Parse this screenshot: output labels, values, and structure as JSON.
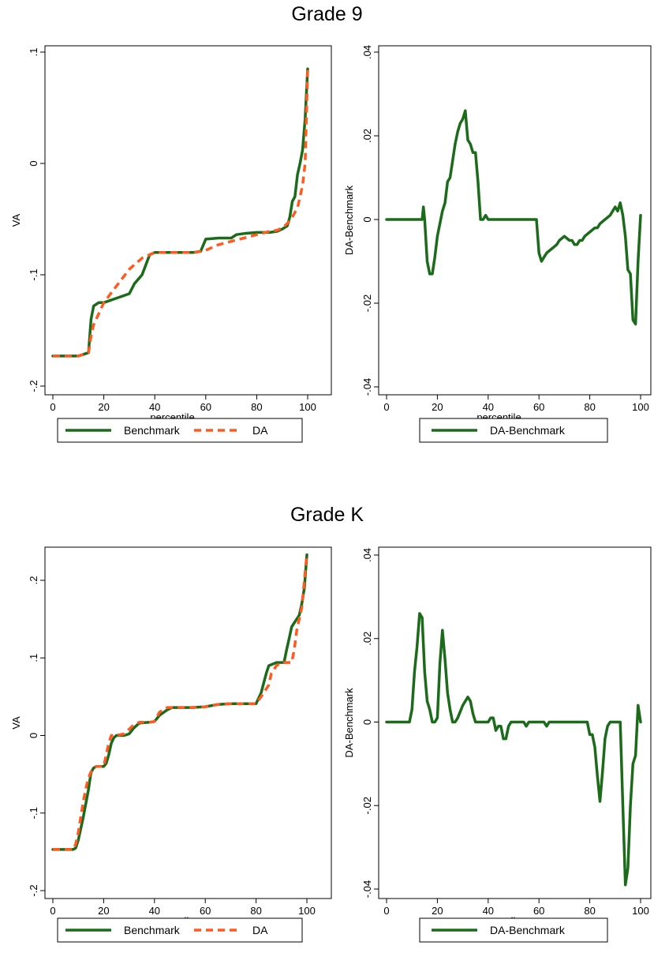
{
  "sections": [
    {
      "title": "Grade 9"
    },
    {
      "title": "Grade K"
    }
  ],
  "colors": {
    "benchmark": "#1b6b1b",
    "da": "#ff5a1f",
    "frame": "#000000"
  },
  "chart_data": [
    {
      "type": "line",
      "panel": "Grade 9 left",
      "xlabel": "percentile",
      "ylabel": "VA",
      "xlim": [
        0,
        100
      ],
      "ylim": [
        -0.2,
        0.1
      ],
      "xticks": [
        0,
        20,
        40,
        60,
        80,
        100
      ],
      "xtick_labels": [
        "0",
        "20",
        "40",
        "60",
        "80",
        "100"
      ],
      "yticks": [
        -0.2,
        -0.1,
        0,
        0.1
      ],
      "ytick_labels": [
        "-.2",
        "-.1",
        "0",
        ".1"
      ],
      "legend": [
        "Benchmark",
        "DA"
      ],
      "series": [
        {
          "name": "Benchmark",
          "style": "solid",
          "color": "#1b6b1b",
          "x": [
            0,
            10,
            14,
            15,
            16,
            18,
            20,
            25,
            30,
            32,
            35,
            38,
            40,
            45,
            50,
            55,
            58,
            60,
            65,
            70,
            72,
            75,
            80,
            85,
            88,
            90,
            92,
            93,
            94,
            95,
            96,
            97,
            98,
            99,
            100
          ],
          "y": [
            -0.173,
            -0.173,
            -0.17,
            -0.14,
            -0.128,
            -0.125,
            -0.125,
            -0.121,
            -0.117,
            -0.108,
            -0.1,
            -0.082,
            -0.08,
            -0.08,
            -0.08,
            -0.08,
            -0.079,
            -0.068,
            -0.067,
            -0.067,
            -0.064,
            -0.063,
            -0.062,
            -0.062,
            -0.061,
            -0.059,
            -0.056,
            -0.048,
            -0.034,
            -0.03,
            -0.01,
            -0.0,
            0.012,
            0.04,
            0.085
          ]
        },
        {
          "name": "DA",
          "style": "dashed",
          "color": "#ff5a1f",
          "x": [
            0,
            10,
            14,
            15,
            16,
            18,
            20,
            25,
            30,
            35,
            38,
            40,
            45,
            50,
            55,
            58,
            60,
            65,
            70,
            75,
            80,
            85,
            88,
            90,
            92,
            94,
            96,
            97,
            98,
            99,
            100
          ],
          "y": [
            -0.173,
            -0.173,
            -0.17,
            -0.155,
            -0.145,
            -0.135,
            -0.125,
            -0.11,
            -0.095,
            -0.085,
            -0.082,
            -0.08,
            -0.08,
            -0.08,
            -0.08,
            -0.079,
            -0.078,
            -0.073,
            -0.07,
            -0.067,
            -0.064,
            -0.061,
            -0.06,
            -0.058,
            -0.054,
            -0.048,
            -0.04,
            -0.03,
            -0.02,
            0.0,
            0.085
          ]
        }
      ]
    },
    {
      "type": "line",
      "panel": "Grade 9 right",
      "xlabel": "percentile",
      "ylabel": "DA-Benchmark",
      "xlim": [
        0,
        100
      ],
      "ylim": [
        -0.04,
        0.04
      ],
      "xticks": [
        0,
        20,
        40,
        60,
        80,
        100
      ],
      "xtick_labels": [
        "0",
        "20",
        "40",
        "60",
        "80",
        "100"
      ],
      "yticks": [
        -0.04,
        -0.02,
        0,
        0.02,
        0.04
      ],
      "ytick_labels": [
        "-.04",
        "-.02",
        "0",
        ".02",
        ".04"
      ],
      "legend": [
        "DA-Benchmark"
      ],
      "series": [
        {
          "name": "DA-Benchmark",
          "style": "solid",
          "color": "#1b6b1b",
          "x": [
            0,
            14,
            14.5,
            15,
            16,
            17,
            18,
            19,
            20,
            22,
            23,
            24,
            25,
            26,
            27,
            28,
            29,
            30,
            31,
            32,
            33,
            34,
            35,
            36,
            37,
            38,
            39,
            40,
            45,
            50,
            55,
            58,
            59,
            60,
            61,
            62,
            63,
            65,
            67,
            68,
            70,
            72,
            73,
            74,
            75,
            76,
            77,
            78,
            80,
            82,
            83,
            84,
            86,
            88,
            89,
            90,
            91,
            92,
            93,
            94,
            95,
            96,
            97,
            98,
            99,
            100
          ],
          "y": [
            0,
            0,
            0.003,
            0,
            -0.01,
            -0.013,
            -0.013,
            -0.009,
            -0.004,
            0.002,
            0.004,
            0.009,
            0.01,
            0.014,
            0.018,
            0.021,
            0.023,
            0.024,
            0.026,
            0.019,
            0.018,
            0.016,
            0.016,
            0.009,
            0.0,
            -0.0,
            0.001,
            0,
            0,
            0,
            0,
            0,
            0,
            -0.008,
            -0.01,
            -0.009,
            -0.008,
            -0.007,
            -0.006,
            -0.005,
            -0.004,
            -0.005,
            -0.005,
            -0.006,
            -0.006,
            -0.005,
            -0.005,
            -0.004,
            -0.003,
            -0.002,
            -0.002,
            -0.001,
            0.0,
            0.001,
            0.002,
            0.003,
            0.002,
            0.004,
            0.001,
            -0.004,
            -0.012,
            -0.013,
            -0.024,
            -0.025,
            -0.01,
            0.001
          ]
        }
      ]
    },
    {
      "type": "line",
      "panel": "Grade K left",
      "xlabel": "percentile",
      "ylabel": "VA",
      "xlim": [
        0,
        100
      ],
      "ylim": [
        -0.2,
        0.25
      ],
      "xticks": [
        0,
        20,
        40,
        60,
        80,
        100
      ],
      "xtick_labels": [
        "0",
        "20",
        "40",
        "60",
        "80",
        "100"
      ],
      "yticks": [
        -0.2,
        -0.1,
        0,
        0.1,
        0.2
      ],
      "ytick_labels": [
        "-.2",
        "-.1",
        "0",
        ".1",
        ".2"
      ],
      "legend": [
        "Benchmark",
        "DA"
      ],
      "series": [
        {
          "name": "Benchmark",
          "style": "solid",
          "color": "#1b6b1b",
          "x": [
            0,
            8,
            9,
            10,
            12,
            14,
            15,
            16,
            17,
            18,
            20,
            21,
            22,
            23,
            24,
            25,
            28,
            30,
            32,
            34,
            38,
            40,
            42,
            45,
            47,
            50,
            55,
            60,
            65,
            70,
            75,
            80,
            82,
            84,
            85,
            88,
            90,
            91,
            92,
            93,
            94,
            95,
            96,
            97,
            98,
            99,
            100
          ],
          "y": [
            -0.147,
            -0.147,
            -0.145,
            -0.135,
            -0.105,
            -0.07,
            -0.048,
            -0.042,
            -0.04,
            -0.04,
            -0.04,
            -0.036,
            -0.025,
            -0.01,
            -0.003,
            0,
            0.0,
            0.002,
            0.01,
            0.016,
            0.017,
            0.018,
            0.026,
            0.033,
            0.036,
            0.036,
            0.036,
            0.037,
            0.04,
            0.041,
            0.041,
            0.041,
            0.055,
            0.08,
            0.09,
            0.094,
            0.094,
            0.094,
            0.11,
            0.125,
            0.14,
            0.145,
            0.15,
            0.155,
            0.17,
            0.19,
            0.233
          ]
        },
        {
          "name": "DA",
          "style": "dashed",
          "color": "#ff5a1f",
          "x": [
            0,
            8,
            9,
            10,
            12,
            13,
            14,
            15,
            16,
            17,
            18,
            20,
            21,
            22,
            23,
            24,
            25,
            28,
            30,
            32,
            34,
            38,
            40,
            42,
            45,
            47,
            50,
            55,
            60,
            65,
            70,
            75,
            80,
            82,
            85,
            86,
            88,
            90,
            92,
            93,
            94,
            95,
            96,
            97,
            98,
            99,
            100
          ],
          "y": [
            -0.147,
            -0.147,
            -0.14,
            -0.125,
            -0.085,
            -0.068,
            -0.055,
            -0.047,
            -0.042,
            -0.04,
            -0.04,
            -0.04,
            -0.025,
            -0.01,
            0.0,
            0.0,
            0.0,
            0.002,
            0.008,
            0.014,
            0.017,
            0.017,
            0.018,
            0.03,
            0.036,
            0.036,
            0.036,
            0.036,
            0.037,
            0.04,
            0.041,
            0.041,
            0.041,
            0.05,
            0.065,
            0.08,
            0.09,
            0.094,
            0.094,
            0.094,
            0.094,
            0.11,
            0.135,
            0.15,
            0.165,
            0.2,
            0.233
          ]
        }
      ]
    },
    {
      "type": "line",
      "panel": "Grade K right",
      "xlabel": "percentile",
      "ylabel": "DA-Benchmark",
      "xlim": [
        0,
        100
      ],
      "ylim": [
        -0.042,
        0.042
      ],
      "xticks": [
        0,
        20,
        40,
        60,
        80,
        100
      ],
      "xtick_labels": [
        "0",
        "20",
        "40",
        "60",
        "80",
        "100"
      ],
      "yticks": [
        -0.04,
        -0.02,
        0,
        0.02,
        0.04
      ],
      "ytick_labels": [
        "-.04",
        "-.02",
        "0",
        ".02",
        ".04"
      ],
      "legend": [
        "DA-Benchmark"
      ],
      "series": [
        {
          "name": "DA-Benchmark",
          "style": "solid",
          "color": "#1b6b1b",
          "x": [
            0,
            8,
            9,
            10,
            11,
            12,
            13,
            14,
            15,
            16,
            17,
            18,
            19,
            20,
            21,
            22,
            23,
            24,
            25,
            26,
            27,
            28,
            30,
            32,
            33,
            34,
            35,
            36,
            38,
            40,
            41,
            42,
            43,
            44,
            45,
            46,
            47,
            48,
            49,
            50,
            52,
            54,
            55,
            56,
            58,
            60,
            62,
            63,
            64,
            65,
            66,
            68,
            70,
            75,
            78,
            79,
            80,
            81,
            82,
            83,
            84,
            85,
            86,
            87,
            88,
            89,
            90,
            91,
            92,
            93,
            94,
            95,
            96,
            97,
            98,
            99,
            100
          ],
          "y": [
            0,
            0,
            0.0,
            0.003,
            0.012,
            0.018,
            0.026,
            0.025,
            0.012,
            0.005,
            0.003,
            0.0,
            0.0,
            0.001,
            0.014,
            0.022,
            0.015,
            0.007,
            0.003,
            0.0,
            0.0,
            0.001,
            0.004,
            0.006,
            0.005,
            0.002,
            0.0,
            0,
            0,
            0,
            0.001,
            0.001,
            -0.002,
            -0.001,
            -0.001,
            -0.004,
            -0.004,
            -0.001,
            0.0,
            0,
            0,
            0,
            -0.001,
            0,
            0,
            0,
            0,
            -0.001,
            0,
            0,
            0,
            0,
            0,
            0,
            0,
            0,
            -0.003,
            -0.003,
            -0.006,
            -0.013,
            -0.019,
            -0.012,
            -0.004,
            -0.001,
            0.0,
            0,
            0,
            0,
            0,
            -0.02,
            -0.039,
            -0.035,
            -0.02,
            -0.01,
            -0.008,
            0.004,
            0.0
          ]
        }
      ]
    }
  ]
}
